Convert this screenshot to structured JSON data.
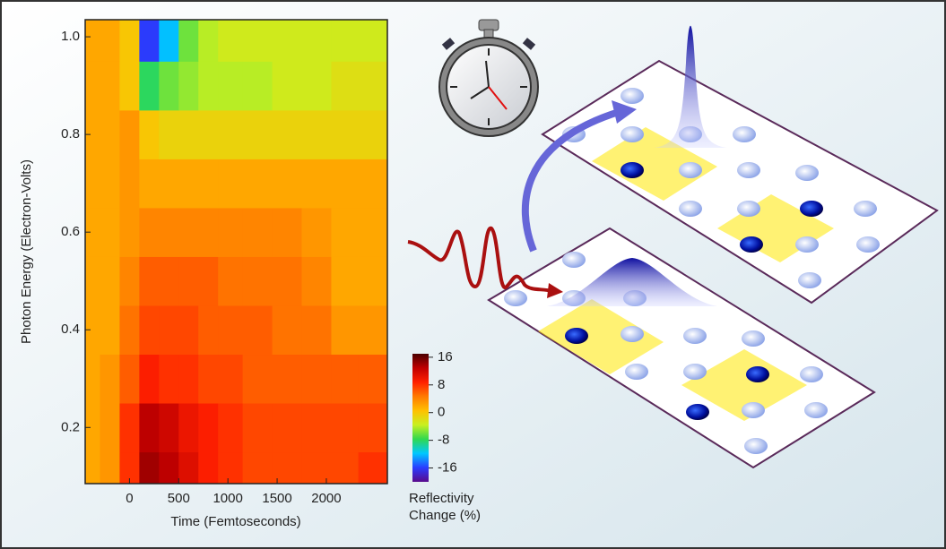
{
  "chart_data": {
    "type": "heatmap",
    "x_label": "Time (Femtoseconds)",
    "y_label": "Photon Energy (Electron-Volts)",
    "colorbar_label": "Reflectivity Change (%)",
    "x": [
      -400,
      -200,
      0,
      200,
      400,
      600,
      800,
      1000,
      1300,
      1600,
      1900,
      2200,
      2450
    ],
    "y": [
      0.1,
      0.2,
      0.3,
      0.4,
      0.5,
      0.6,
      0.7,
      0.8,
      0.9,
      1.0
    ],
    "z": [
      [
        2,
        3,
        8,
        14,
        13,
        11,
        9,
        8,
        7,
        7,
        7,
        7,
        8
      ],
      [
        2,
        3,
        8,
        13,
        12,
        10,
        9,
        8,
        7,
        7,
        7,
        7,
        7
      ],
      [
        2,
        3,
        6,
        9,
        8,
        8,
        7,
        7,
        6,
        6,
        6,
        6,
        6
      ],
      [
        2,
        2,
        5,
        7,
        7,
        7,
        6,
        6,
        6,
        5,
        5,
        3,
        3
      ],
      [
        2,
        2,
        4,
        6,
        6,
        6,
        6,
        5,
        5,
        5,
        4,
        2,
        2
      ],
      [
        2,
        2,
        3,
        4,
        4,
        4,
        4,
        4,
        4,
        4,
        3,
        2,
        2
      ],
      [
        2,
        2,
        3,
        2,
        2,
        2,
        2,
        2,
        2,
        2,
        2,
        2,
        2
      ],
      [
        2,
        2,
        3,
        0,
        -1,
        -1,
        -1,
        -1,
        -1,
        -1,
        -1,
        -1,
        -1
      ],
      [
        2,
        2,
        0,
        -8,
        -6,
        -5,
        -4,
        -4,
        -4,
        -3,
        -3,
        -2,
        -2
      ],
      [
        2,
        2,
        0,
        -16,
        -12,
        -6,
        -4,
        -3,
        -3,
        -3,
        -3,
        -3,
        -3
      ]
    ],
    "xlim": [
      -450,
      2620
    ],
    "ylim": [
      0.085,
      1.035
    ],
    "xticks": [
      0,
      500,
      1000,
      1500,
      2000
    ],
    "yticks": [
      0.2,
      0.4,
      0.6,
      0.8,
      {
        "value": 1,
        "label": "1.0"
      }
    ],
    "clim": [
      -20,
      17
    ],
    "cticks": [
      16,
      8,
      0,
      -8,
      -16
    ],
    "colors": [
      "#5a0a8c",
      "#2a3cff",
      "#00c8ff",
      "#30d850",
      "#c8f020",
      "#ffc000",
      "#ff7a00",
      "#ff2000",
      "#c00000",
      "#4a0000"
    ]
  }
}
